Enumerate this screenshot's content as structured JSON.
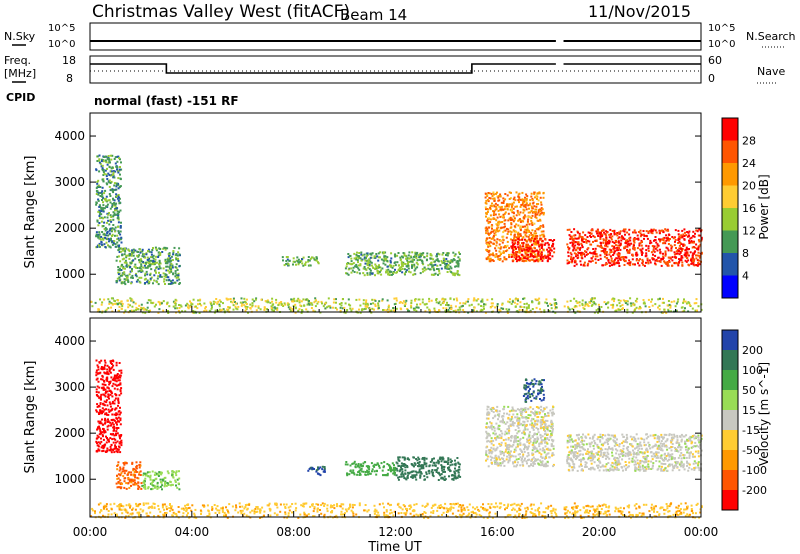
{
  "header": {
    "station": "Christmas Valley West (fitACF)",
    "beam": "Beam 14",
    "date": "11/Nov/2015"
  },
  "left_labels": {
    "nsky": "N.Sky",
    "freq1": "Freq.",
    "freq2": "[MHz]",
    "cpid": "CPID"
  },
  "right_labels": {
    "nsearch": "N.Search",
    "nave": "Nave"
  },
  "top_ticks": {
    "nsky_hi": "10^5",
    "nsky_lo": "10^0",
    "freq_hi": "18",
    "freq_lo": "8",
    "nsearch_hi": "10^5",
    "nsearch_lo": "10^0",
    "nave_hi": "60",
    "nave_lo": "0"
  },
  "cpid_text": "normal (fast) -151 RF",
  "panels": {
    "ylabel": "Slant Range [km]",
    "yticks": [
      "4000",
      "3000",
      "2000",
      "1000"
    ],
    "xticks": [
      "00:00",
      "04:00",
      "08:00",
      "12:00",
      "16:00",
      "20:00",
      "00:00"
    ],
    "xlabel": "Time UT"
  },
  "power_bar": {
    "label": "Power [dB]",
    "ticks": [
      "28",
      "24",
      "20",
      "16",
      "12",
      "8",
      "4"
    ],
    "colors": [
      "#ff0000",
      "#ff5500",
      "#ff9900",
      "#ffcc33",
      "#99cc33",
      "#449955",
      "#2255aa",
      "#0000ff"
    ]
  },
  "velocity_bar": {
    "label": "Velocity [m s^-1]",
    "ticks": [
      "200",
      "100",
      "50",
      "15",
      "-15",
      "-50",
      "-100",
      "-200"
    ],
    "colors": [
      "#2244aa",
      "#337755",
      "#44aa44",
      "#99dd55",
      "#c8c8c0",
      "#ffcc33",
      "#ff9900",
      "#ff5500",
      "#ff0000"
    ]
  },
  "chart_data": {
    "type": "heatmap",
    "x_range_hours": [
      0,
      24
    ],
    "y_range_km": [
      180,
      4500
    ],
    "power_scale_db": [
      0,
      30
    ],
    "velocity_scale": [
      -250,
      250
    ],
    "data_gap_hours": [
      18.3,
      18.6
    ],
    "series": [
      {
        "name": "Power [dB]",
        "regions": [
          {
            "t": [
              0.0,
              24.0
            ],
            "r": [
              180,
              500
            ],
            "v": 14
          },
          {
            "t": [
              0.2,
              1.2
            ],
            "r": [
              1600,
              3600
            ],
            "v": 9
          },
          {
            "t": [
              1.0,
              3.5
            ],
            "r": [
              800,
              1600
            ],
            "v": 10
          },
          {
            "t": [
              7.5,
              9.0
            ],
            "r": [
              1200,
              1400
            ],
            "v": 11
          },
          {
            "t": [
              10.0,
              14.5
            ],
            "r": [
              1000,
              1500
            ],
            "v": 11
          },
          {
            "t": [
              15.5,
              17.8
            ],
            "r": [
              1300,
              2800
            ],
            "v": 22
          },
          {
            "t": [
              16.5,
              18.2
            ],
            "r": [
              1300,
              1800
            ],
            "v": 28
          },
          {
            "t": [
              18.7,
              24.0
            ],
            "r": [
              1200,
              2000
            ],
            "v": 27
          }
        ]
      },
      {
        "name": "Velocity [m s^-1]",
        "regions": [
          {
            "t": [
              0.2,
              1.2
            ],
            "r": [
              1600,
              3600
            ],
            "v": -220
          },
          {
            "t": [
              1.0,
              2.0
            ],
            "r": [
              800,
              1400
            ],
            "v": -110
          },
          {
            "t": [
              2.0,
              3.5
            ],
            "r": [
              800,
              1200
            ],
            "v": 40
          },
          {
            "t": [
              0.0,
              24.0
            ],
            "r": [
              180,
              500
            ],
            "v": -40
          },
          {
            "t": [
              8.5,
              9.2
            ],
            "r": [
              1100,
              1300
            ],
            "v": 200
          },
          {
            "t": [
              10.0,
              12.0
            ],
            "r": [
              1100,
              1400
            ],
            "v": 80
          },
          {
            "t": [
              12.0,
              14.5
            ],
            "r": [
              1000,
              1500
            ],
            "v": 150
          },
          {
            "t": [
              15.5,
              18.2
            ],
            "r": [
              1300,
              2600
            ],
            "v": 0
          },
          {
            "t": [
              18.7,
              24.0
            ],
            "r": [
              1200,
              2000
            ],
            "v": 0
          },
          {
            "t": [
              17.0,
              17.8
            ],
            "r": [
              2700,
              3200
            ],
            "v": 200
          }
        ]
      }
    ]
  }
}
